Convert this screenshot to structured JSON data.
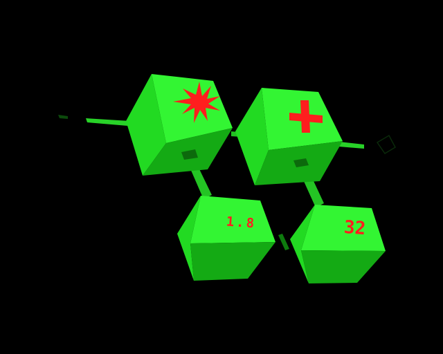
{
  "colors": {
    "background": "#000000",
    "cube_top": "#33f533",
    "cube_left": "#1ccf1c",
    "cube_right": "#109c10",
    "connector": "#22c822",
    "symbol": "#ff1e1e"
  },
  "nodes": [
    {
      "id": "multiply",
      "symbol": "star-burst-icon"
    },
    {
      "id": "add",
      "symbol": "plus-icon"
    },
    {
      "id": "operand-a",
      "text": "1.8"
    },
    {
      "id": "operand-b",
      "text": "32"
    }
  ]
}
